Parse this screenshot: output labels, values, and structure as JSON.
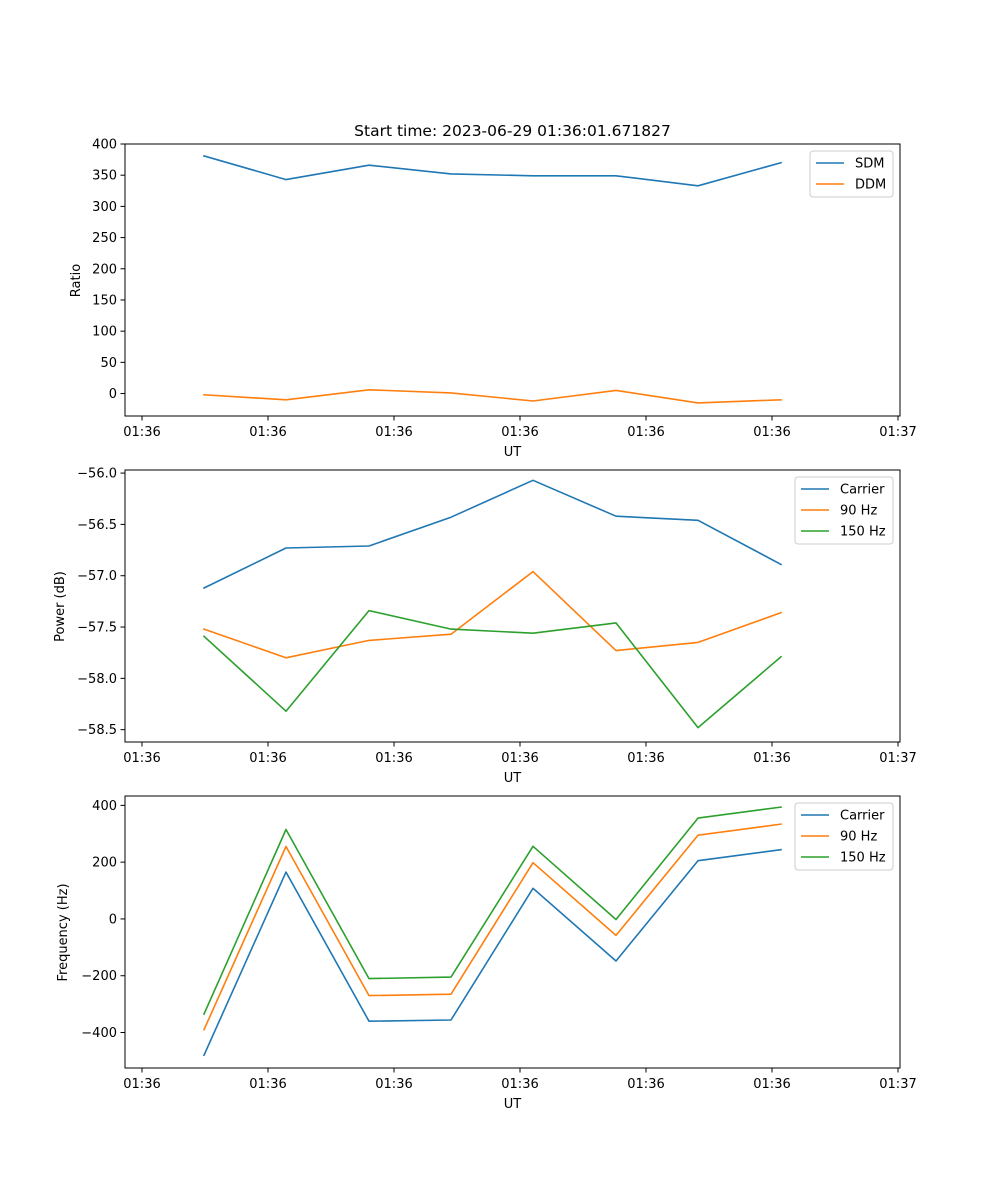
{
  "chart_data": [
    {
      "type": "line",
      "title": "Start time: 2023-06-29 01:36:01.671827",
      "xlabel": "UT",
      "ylabel": "Ratio",
      "x_tick_labels": [
        "01:36",
        "01:36",
        "01:36",
        "01:36",
        "01:36",
        "01:36",
        "01:37"
      ],
      "y_ticks": [
        0,
        50,
        100,
        150,
        200,
        250,
        300,
        350,
        400
      ],
      "ylim": [
        -36,
        400
      ],
      "legend_position": "upper-right",
      "series": [
        {
          "name": "SDM",
          "color": "#1f77b4",
          "values": [
            381,
            343,
            366,
            352,
            349,
            349,
            333,
            370
          ]
        },
        {
          "name": "DDM",
          "color": "#ff7f0e",
          "values": [
            -2,
            -10,
            6,
            1,
            -12,
            5,
            -15,
            -10
          ]
        }
      ]
    },
    {
      "type": "line",
      "title": "",
      "xlabel": "UT",
      "ylabel": "Power (dB)",
      "x_tick_labels": [
        "01:36",
        "01:36",
        "01:36",
        "01:36",
        "01:36",
        "01:36",
        "01:37"
      ],
      "y_ticks": [
        -58.5,
        -58.0,
        -57.5,
        -57.0,
        -56.5,
        -56.0
      ],
      "y_tick_labels": [
        "−58.5",
        "−58.0",
        "−57.5",
        "−57.0",
        "−56.5",
        "−56.0"
      ],
      "ylim": [
        -58.62,
        -55.97
      ],
      "legend_position": "upper-right",
      "series": [
        {
          "name": "Carrier",
          "color": "#1f77b4",
          "values": [
            -57.12,
            -56.73,
            -56.71,
            -56.43,
            -56.07,
            -56.42,
            -56.46,
            -56.89
          ]
        },
        {
          "name": "90 Hz",
          "color": "#ff7f0e",
          "values": [
            -57.52,
            -57.8,
            -57.63,
            -57.57,
            -56.96,
            -57.73,
            -57.65,
            -57.36
          ]
        },
        {
          "name": "150 Hz",
          "color": "#2ca02c",
          "values": [
            -57.59,
            -58.32,
            -57.34,
            -57.52,
            -57.56,
            -57.46,
            -58.48,
            -57.79
          ]
        }
      ]
    },
    {
      "type": "line",
      "title": "",
      "xlabel": "UT",
      "ylabel": "Frequency (Hz)",
      "x_tick_labels": [
        "01:36",
        "01:36",
        "01:36",
        "01:36",
        "01:36",
        "01:36",
        "01:37"
      ],
      "y_ticks": [
        -400,
        -200,
        0,
        200,
        400
      ],
      "y_tick_labels": [
        "−400",
        "−200",
        "0",
        "200",
        "400"
      ],
      "ylim": [
        -525,
        433
      ],
      "legend_position": "upper-right",
      "series": [
        {
          "name": "Carrier",
          "color": "#1f77b4",
          "values": [
            -480,
            165,
            -360,
            -356,
            108,
            -148,
            205,
            244
          ]
        },
        {
          "name": "90 Hz",
          "color": "#ff7f0e",
          "values": [
            -390,
            255,
            -270,
            -265,
            198,
            -58,
            295,
            334
          ]
        },
        {
          "name": "150 Hz",
          "color": "#2ca02c",
          "values": [
            -335,
            315,
            -210,
            -205,
            256,
            -2,
            355,
            394
          ]
        }
      ]
    }
  ]
}
